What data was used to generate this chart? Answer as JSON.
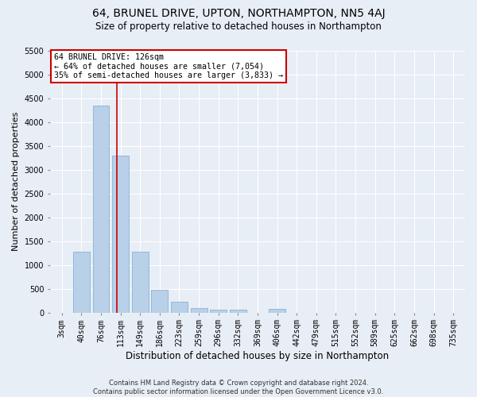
{
  "title": "64, BRUNEL DRIVE, UPTON, NORTHAMPTON, NN5 4AJ",
  "subtitle": "Size of property relative to detached houses in Northampton",
  "xlabel": "Distribution of detached houses by size in Northampton",
  "ylabel": "Number of detached properties",
  "footer_line1": "Contains HM Land Registry data © Crown copyright and database right 2024.",
  "footer_line2": "Contains public sector information licensed under the Open Government Licence v3.0.",
  "bar_labels": [
    "3sqm",
    "40sqm",
    "76sqm",
    "113sqm",
    "149sqm",
    "186sqm",
    "223sqm",
    "259sqm",
    "296sqm",
    "332sqm",
    "369sqm",
    "406sqm",
    "442sqm",
    "479sqm",
    "515sqm",
    "552sqm",
    "589sqm",
    "625sqm",
    "662sqm",
    "698sqm",
    "735sqm"
  ],
  "bar_values": [
    0,
    1270,
    4350,
    3300,
    1270,
    480,
    220,
    100,
    65,
    60,
    0,
    80,
    0,
    0,
    0,
    0,
    0,
    0,
    0,
    0,
    0
  ],
  "bar_color": "#b8d0e8",
  "bar_edge_color": "#7aaad0",
  "background_color": "#e8eef5",
  "grid_color": "#ffffff",
  "vline_color": "#cc0000",
  "vline_x_index": 2.8,
  "annotation_text_line1": "64 BRUNEL DRIVE: 126sqm",
  "annotation_text_line2": "← 64% of detached houses are smaller (7,054)",
  "annotation_text_line3": "35% of semi-detached houses are larger (3,833) →",
  "annotation_box_color": "#ffffff",
  "annotation_box_edgecolor": "#cc0000",
  "ylim": [
    0,
    5500
  ],
  "yticks": [
    0,
    500,
    1000,
    1500,
    2000,
    2500,
    3000,
    3500,
    4000,
    4500,
    5000,
    5500
  ],
  "title_fontsize": 10,
  "subtitle_fontsize": 8.5,
  "ylabel_fontsize": 8,
  "xlabel_fontsize": 8.5,
  "tick_fontsize": 7,
  "footer_fontsize": 6
}
